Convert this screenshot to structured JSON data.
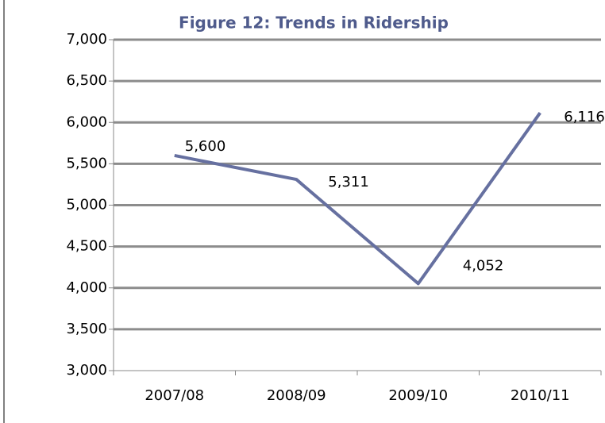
{
  "chart_data": {
    "type": "line",
    "title": "Figure 12: Trends in Ridership",
    "categories": [
      "2007/08",
      "2008/09",
      "2009/10",
      "2010/11"
    ],
    "series": [
      {
        "name": "Ridership",
        "color": "#6670a0",
        "values": [
          5600,
          5311,
          4052,
          6116
        ],
        "value_labels": [
          "5,600",
          "5,311",
          "4,052",
          "6,116"
        ]
      }
    ],
    "ylim": [
      3000,
      7000
    ],
    "yticks": [
      {
        "value": 3000,
        "label": "3,000"
      },
      {
        "value": 3500,
        "label": "3,500"
      },
      {
        "value": 4000,
        "label": "4,000"
      },
      {
        "value": 4500,
        "label": "4,500"
      },
      {
        "value": 5000,
        "label": "5,000"
      },
      {
        "value": 5500,
        "label": "5,500"
      },
      {
        "value": 6000,
        "label": "6,000"
      },
      {
        "value": 6500,
        "label": "6,500"
      },
      {
        "value": 7000,
        "label": "7,000"
      }
    ],
    "grid": true
  }
}
